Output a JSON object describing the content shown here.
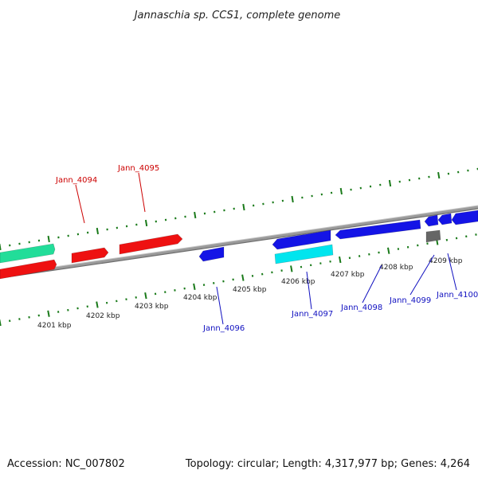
{
  "title": "Jannaschia sp. CCS1, complete genome",
  "footer": {
    "accession": "Accession: NC_007802",
    "summary": "Topology: circular; Length: 4,317,977 bp; Genes: 4,264"
  },
  "colors": {
    "tick": "#1a7a1a",
    "backbone": "#8a8a8a",
    "label_forward": "#cc0000",
    "label_reverse": "#1010c0",
    "leader_forward": "#cc0000",
    "leader_reverse": "#1010c0"
  },
  "kbp_labels": [
    "4201 kbp",
    "4202 kbp",
    "4203 kbp",
    "4204 kbp",
    "4205 kbp",
    "4206 kbp",
    "4207 kbp",
    "4208 kbp",
    "4209 kbp"
  ],
  "gene_labels": {
    "jann_4094": "Jann_4094",
    "jann_4095": "Jann_4095",
    "jann_4096": "Jann_4096",
    "jann_4097": "Jann_4097",
    "jann_4098": "Jann_4098",
    "jann_4099": "Jann_4099",
    "jann_4100": "Jann_4100"
  },
  "features": [
    {
      "name": "feature-teal-left",
      "color": "#22dd99"
    },
    {
      "name": "feature-red-left",
      "color": "#ee1111"
    },
    {
      "name": "feature-red-mid",
      "color": "#ee1111"
    },
    {
      "name": "feature-red-jann4095",
      "color": "#ee1111"
    },
    {
      "name": "feature-blue-jann4096",
      "color": "#1414e6"
    },
    {
      "name": "feature-blue-large",
      "color": "#1414e6"
    },
    {
      "name": "feature-cyan-jann4097",
      "color": "#00e5ee"
    },
    {
      "name": "feature-blue-jann4098",
      "color": "#1414e6"
    },
    {
      "name": "feature-blue-small-1",
      "color": "#1414e6"
    },
    {
      "name": "feature-blue-small-2",
      "color": "#1414e6"
    },
    {
      "name": "feature-blue-right",
      "color": "#1414e6"
    },
    {
      "name": "feature-gray-jann4099",
      "color": "#666666"
    }
  ]
}
